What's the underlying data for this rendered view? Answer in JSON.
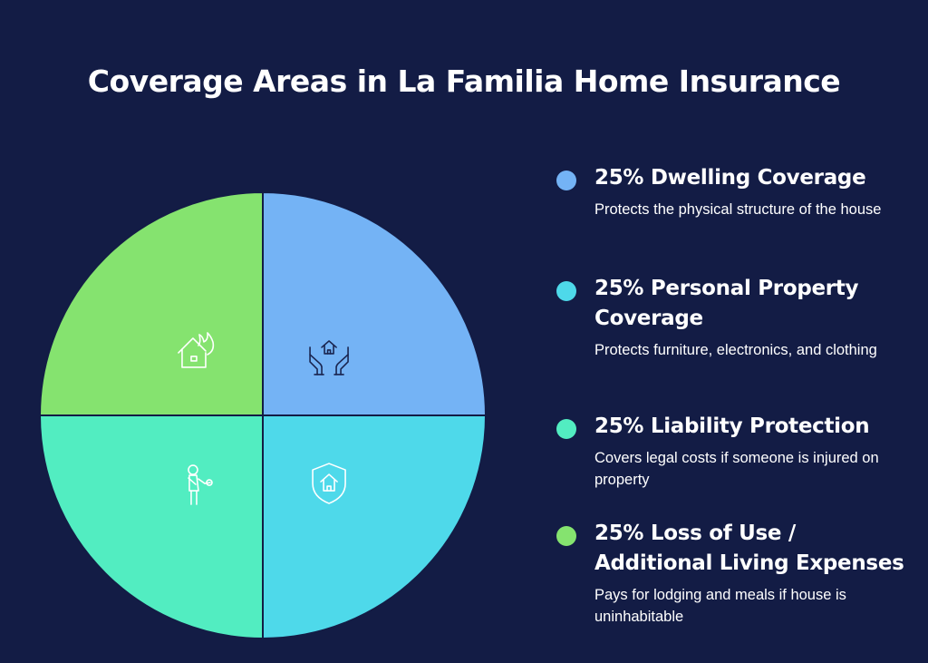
{
  "title": "Coverage Areas in La Familia Home Insurance",
  "colors": {
    "background": "#131c45",
    "divider": "#131c45",
    "dwelling": "#74b3f5",
    "personal_property": "#4ed9ea",
    "liability": "#52edc1",
    "loss_of_use": "#85e36f"
  },
  "chart_data": {
    "type": "pie",
    "title": "Coverage Areas in La Familia Home Insurance",
    "legend_placement": "right",
    "slices": [
      {
        "label": "25% Dwelling Coverage",
        "value": 25,
        "description": "Protects the physical structure of the house",
        "color": "#74b3f5",
        "icon": "hands-holding-house-icon"
      },
      {
        "label": "25% Personal Property Coverage",
        "value": 25,
        "description": "Protects furniture, electronics, and clothing",
        "color": "#4ed9ea",
        "icon": "shield-house-icon"
      },
      {
        "label": "25% Liability Protection",
        "value": 25,
        "description": "Covers legal costs if someone is injured on property",
        "color": "#52edc1",
        "icon": "injured-person-icon"
      },
      {
        "label": "25% Loss of Use / Additional Living Expenses",
        "value": 25,
        "description": "Pays for lodging and meals if house is uninhabitable",
        "color": "#85e36f",
        "icon": "house-fire-icon"
      }
    ]
  }
}
